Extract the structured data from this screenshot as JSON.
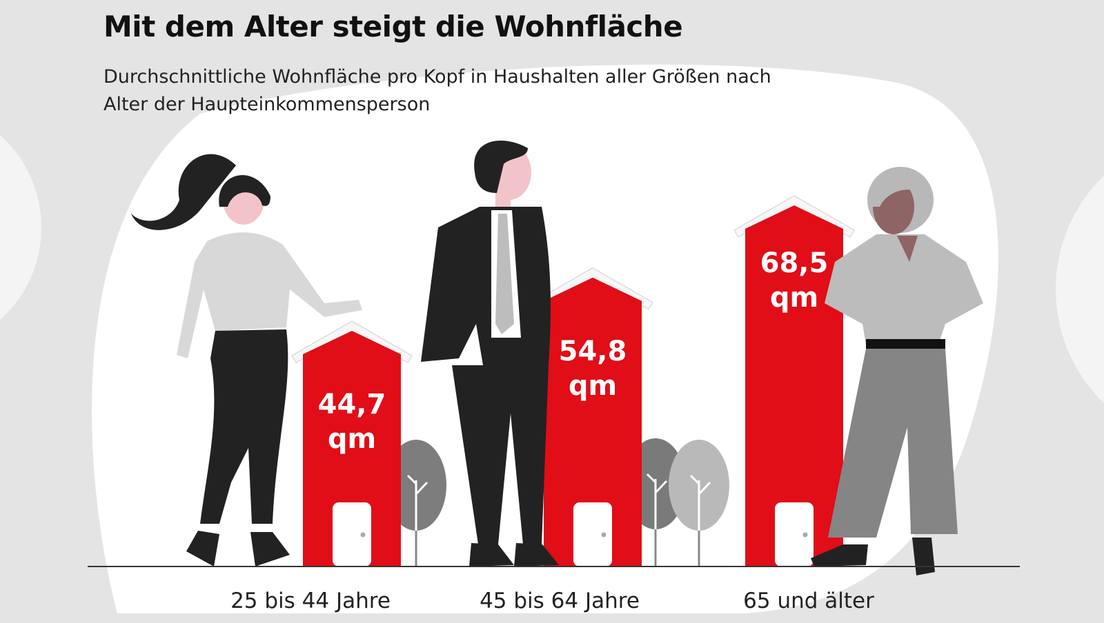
{
  "chart_data": {
    "type": "bar",
    "title": "Mit dem Alter steigt die Wohnfläche",
    "subtitle": "Durchschnittliche Wohnfläche pro Kopf in Haushalten aller Größen nach Alter der Haupteinkommensperson",
    "categories": [
      "25 bis 44 Jahre",
      "45 bis 64 Jahre",
      "65 und älter"
    ],
    "values": [
      44.7,
      54.8,
      68.5
    ],
    "value_labels": [
      "44,7",
      "54,8",
      "68,5"
    ],
    "unit": "qm",
    "xlabel": "",
    "ylabel": "",
    "ylim": [
      0,
      75
    ],
    "grid": false,
    "legend": "none",
    "bar_style": "house-shaped bars",
    "colors": {
      "bar": "#e10d17",
      "roof": "#f7f7f7",
      "ground": "#333333",
      "text_on_bar": "#ffffff"
    }
  },
  "decoration": {
    "illustrations": [
      "woman-figure-icon",
      "man-figure-icon",
      "elderly-woman-figure-icon",
      "tree-icon"
    ]
  }
}
